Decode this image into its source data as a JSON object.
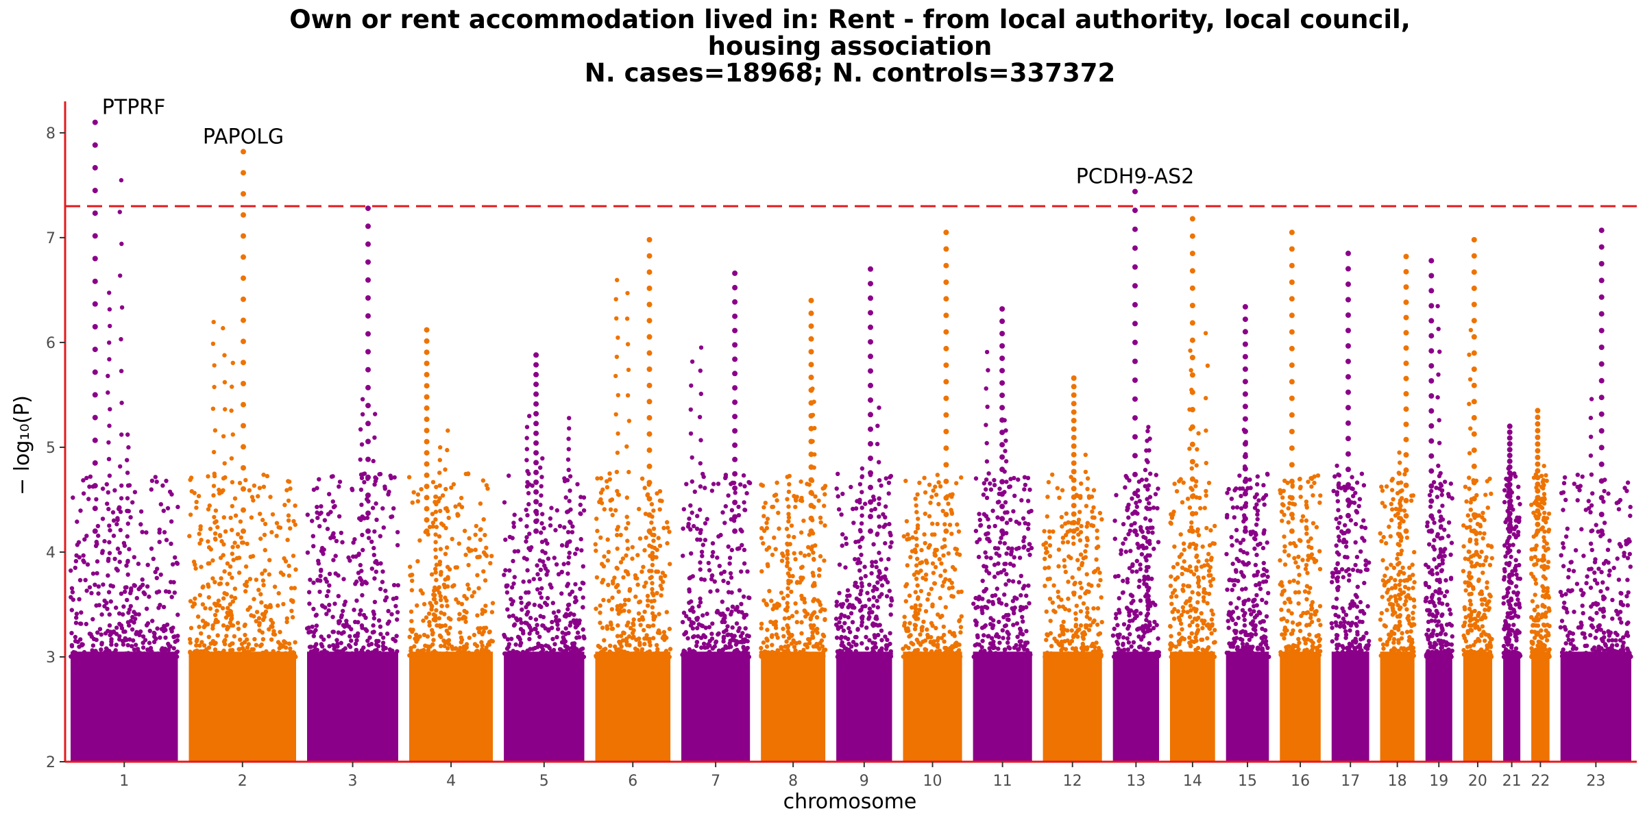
{
  "chart_data": {
    "type": "scatter",
    "subtype": "manhattan",
    "title_lines": [
      "Own or rent accommodation lived in: Rent - from local authority, local council,",
      "housing association",
      "N. cases=18968; N. controls=337372"
    ],
    "xlabel": "chromosome",
    "ylabel": "− log₁₀(P)",
    "ylim": [
      2,
      8.3
    ],
    "yticks": [
      "2",
      "3",
      "4",
      "5",
      "6",
      "7",
      "8"
    ],
    "significance_threshold": 7.3,
    "colors": {
      "odd": "#8b0089",
      "even": "#ee7300",
      "threshold": "#e31a1c",
      "axis": "#e31a1c"
    },
    "chromosomes": [
      {
        "label": "1",
        "width": 1.0,
        "max": 8.1
      },
      {
        "label": "2",
        "width": 1.0,
        "max": 7.82
      },
      {
        "label": "3",
        "width": 0.85,
        "max": 7.28
      },
      {
        "label": "4",
        "width": 0.78,
        "max": 6.12
      },
      {
        "label": "5",
        "width": 0.75,
        "max": 5.88
      },
      {
        "label": "6",
        "width": 0.7,
        "max": 6.98
      },
      {
        "label": "7",
        "width": 0.64,
        "max": 6.66
      },
      {
        "label": "8",
        "width": 0.6,
        "max": 6.4
      },
      {
        "label": "9",
        "width": 0.52,
        "max": 6.7
      },
      {
        "label": "10",
        "width": 0.55,
        "max": 7.05
      },
      {
        "label": "11",
        "width": 0.55,
        "max": 6.32
      },
      {
        "label": "12",
        "width": 0.55,
        "max": 5.66
      },
      {
        "label": "13",
        "width": 0.43,
        "max": 7.44
      },
      {
        "label": "14",
        "width": 0.42,
        "max": 7.18
      },
      {
        "label": "15",
        "width": 0.4,
        "max": 6.34
      },
      {
        "label": "16",
        "width": 0.38,
        "max": 7.05
      },
      {
        "label": "17",
        "width": 0.35,
        "max": 6.85
      },
      {
        "label": "18",
        "width": 0.32,
        "max": 6.82
      },
      {
        "label": "19",
        "width": 0.25,
        "max": 6.78
      },
      {
        "label": "20",
        "width": 0.27,
        "max": 6.98
      },
      {
        "label": "21",
        "width": 0.16,
        "max": 5.2
      },
      {
        "label": "22",
        "width": 0.17,
        "max": 5.35
      },
      {
        "label": "23",
        "width": 0.66,
        "max": 7.07
      }
    ],
    "annotations": [
      {
        "label": "PTPRF",
        "chromosome": "1",
        "value": 8.1
      },
      {
        "label": "PAPOLG",
        "chromosome": "2",
        "value": 7.82
      },
      {
        "label": "PCDH9-AS2",
        "chromosome": "13",
        "value": 7.44
      }
    ]
  }
}
